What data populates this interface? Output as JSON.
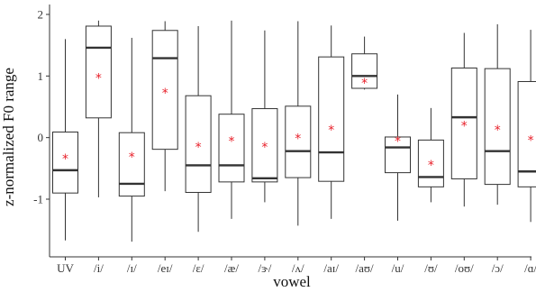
{
  "chart_data": {
    "type": "box",
    "xlabel": "vowel",
    "ylabel": "z-normalized F0 range",
    "ylim": [
      -2.9,
      2.1
    ],
    "yticks": [
      -1,
      0,
      1,
      2
    ],
    "grid": false,
    "legend": "none",
    "mean_marker_color": "#e8202a",
    "box_stroke_color": "#333333",
    "categories": [
      "UV",
      "/i/",
      "/ɪ/",
      "/eɪ/",
      "/ɛ/",
      "/æ/",
      "/ɝ/",
      "/ʌ/",
      "/aɪ/",
      "/aʊ/",
      "/u/",
      "/ʊ/",
      "/oʊ/",
      "/ɔ/",
      "/ɑ/"
    ],
    "boxes": [
      {
        "whisker_low": -1.67,
        "q1": -0.9,
        "median": -0.53,
        "q3": 0.09,
        "whisker_high": 1.6,
        "mean": -0.33
      },
      {
        "whisker_low": -0.97,
        "q1": 0.32,
        "median": 1.46,
        "q3": 1.81,
        "whisker_high": 1.9,
        "mean": 0.98
      },
      {
        "whisker_low": -1.69,
        "q1": -0.95,
        "median": -0.75,
        "q3": 0.08,
        "whisker_high": 1.62,
        "mean": -0.3
      },
      {
        "whisker_low": -0.87,
        "q1": -0.19,
        "median": 1.29,
        "q3": 1.74,
        "whisker_high": 1.89,
        "mean": 0.74
      },
      {
        "whisker_low": -1.53,
        "q1": -0.89,
        "median": -0.45,
        "q3": 0.68,
        "whisker_high": 1.81,
        "mean": -0.14
      },
      {
        "whisker_low": -1.32,
        "q1": -0.72,
        "median": -0.45,
        "q3": 0.38,
        "whisker_high": 1.9,
        "mean": -0.04
      },
      {
        "whisker_low": -1.05,
        "q1": -0.72,
        "median": -0.66,
        "q3": 0.47,
        "whisker_high": 1.74,
        "mean": -0.14
      },
      {
        "whisker_low": -1.43,
        "q1": -0.65,
        "median": -0.22,
        "q3": 0.51,
        "whisker_high": 1.89,
        "mean": 0.0
      },
      {
        "whisker_low": -1.32,
        "q1": -0.71,
        "median": -0.24,
        "q3": 1.31,
        "whisker_high": 1.82,
        "mean": 0.14
      },
      {
        "whisker_low": 0.78,
        "q1": 0.8,
        "median": 1.0,
        "q3": 1.36,
        "whisker_high": 1.64,
        "mean": 0.9
      },
      {
        "whisker_low": -1.35,
        "q1": -0.57,
        "median": -0.16,
        "q3": 0.01,
        "whisker_high": 0.7,
        "mean": -0.04
      },
      {
        "whisker_low": -1.05,
        "q1": -0.8,
        "median": -0.64,
        "q3": -0.04,
        "whisker_high": 0.48,
        "mean": -0.43
      },
      {
        "whisker_low": -1.12,
        "q1": -0.67,
        "median": 0.33,
        "q3": 1.13,
        "whisker_high": 1.7,
        "mean": 0.21
      },
      {
        "whisker_low": -1.09,
        "q1": -0.76,
        "median": -0.22,
        "q3": 1.12,
        "whisker_high": 1.84,
        "mean": 0.14
      },
      {
        "whisker_low": -1.37,
        "q1": -0.8,
        "median": -0.55,
        "q3": 0.91,
        "whisker_high": 1.75,
        "mean": -0.03
      }
    ]
  }
}
